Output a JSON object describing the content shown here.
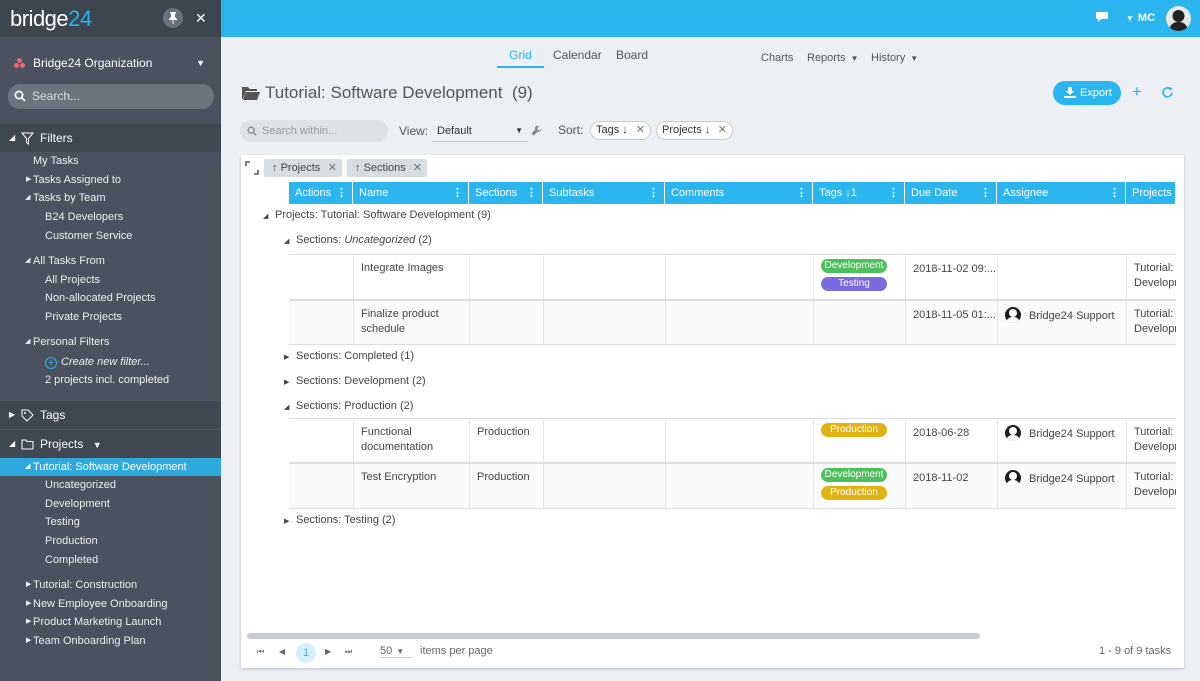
{
  "app": {
    "logo_text": "bridge",
    "logo_num": "24",
    "user_initials": "MC",
    "accent": "#2bb5ef"
  },
  "sidebar": {
    "org": "Bridge24 Organization",
    "search_placeholder": "Search...",
    "filters_label": "Filters",
    "filter_items": [
      "My Tasks",
      "Tasks Assigned to",
      "Tasks by Team",
      "B24 Developers",
      "Customer Service",
      "All Tasks From",
      "All Projects",
      "Non-allocated Projects",
      "Private Projects",
      "Personal Filters",
      "Create new filter...",
      "2 projects incl. completed"
    ],
    "tags_label": "Tags",
    "projects_label": "Projects",
    "project_items": [
      "Tutorial: Software Development",
      "Uncategorized",
      "Development",
      "Testing",
      "Production",
      "Completed",
      "Tutorial: Construction",
      "New Employee Onboarding",
      "Product Marketing Launch",
      "Team Onboarding Plan"
    ]
  },
  "nav": {
    "tabs": [
      "Grid",
      "Calendar",
      "Board"
    ],
    "right": [
      "Charts",
      "Reports",
      "History"
    ]
  },
  "page": {
    "title": "Tutorial: Software Development",
    "count": "(9)",
    "export_label": "Export"
  },
  "toolbar": {
    "search_placeholder": "Search within...",
    "view_label": "View:",
    "view_value": "Default",
    "sort_label": "Sort:",
    "sort_chips": [
      "Tags ↓",
      "Projects ↓"
    ]
  },
  "grid": {
    "group_chips": [
      "Projects",
      "Sections"
    ],
    "columns": [
      "Actions",
      "Name",
      "Sections",
      "Subtasks",
      "Comments",
      "Tags ↓1",
      "Due Date",
      "Assignee",
      "Projects"
    ],
    "groups": {
      "project": "Projects: Tutorial: Software Development (9)",
      "uncat_prefix": "Sections:",
      "uncat_name": "Uncategorized",
      "uncat_count": "(2)",
      "completed": "Sections: Completed (1)",
      "development": "Sections: Development (2)",
      "production": "Sections: Production (2)",
      "testing": "Sections: Testing (2)"
    },
    "rows": [
      {
        "name1": "Integrate Images",
        "name2": "",
        "section": "",
        "tags": [
          "Development",
          "Testing"
        ],
        "due": "2018-11-02 09:...",
        "assignee": "",
        "proj1": "Tutorial: S",
        "proj2": "Developm"
      },
      {
        "name1": "Finalize product",
        "name2": "schedule",
        "section": "",
        "tags": [],
        "due": "2018-11-05 01:...",
        "assignee": "Bridge24 Support",
        "proj1": "Tutorial: S",
        "proj2": "Developm"
      },
      {
        "name1": "Functional",
        "name2": "documentation",
        "section": "Production",
        "tags": [
          "Production"
        ],
        "due": "2018-06-28",
        "assignee": "Bridge24 Support",
        "proj1": "Tutorial: S",
        "proj2": "Developm"
      },
      {
        "name1": "Test Encryption",
        "name2": "",
        "section": "Production",
        "tags": [
          "Development",
          "Production"
        ],
        "due": "2018-11-02",
        "assignee": "Bridge24 Support",
        "proj1": "Tutorial: S",
        "proj2": "Developm"
      }
    ],
    "tag_colors": {
      "Development": "#4cc05a",
      "Testing": "#7b6be0",
      "Production": "#e0b315"
    }
  },
  "pager": {
    "page": "1",
    "per_page": "50",
    "per_page_label": "items per page",
    "summary": "1 - 9 of 9 tasks"
  }
}
